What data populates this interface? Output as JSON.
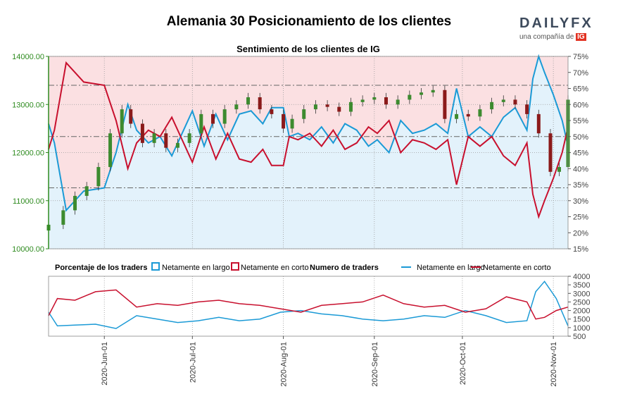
{
  "header": {
    "title": "Alemania 30 Posicionamiento de los clientes",
    "logo_brand": "DAILYFX",
    "logo_tagline": "una compañía de",
    "logo_ig": "IG"
  },
  "colors": {
    "long_line": "#1b9ad6",
    "short_line": "#c8102e",
    "long_fill": "#e3f2fb",
    "short_fill": "#fbe0e2",
    "candle_up": "#3d8b2f",
    "candle_down": "#8b1a1a",
    "axis_green": "#2e8b1f",
    "grid": "#9a9a9a"
  },
  "chart_data": [
    {
      "type": "candlestick+area",
      "title": "Sentimiento de los clientes de IG",
      "ylim": [
        10000,
        14000
      ],
      "yticks": [
        "10000.00",
        "11000.00",
        "12000.00",
        "13000.00",
        "14000.00"
      ],
      "y2lim": [
        15,
        75
      ],
      "y2ticks": [
        "15%",
        "20%",
        "25%",
        "30%",
        "35%",
        "40%",
        "45%",
        "50%",
        "55%",
        "60%",
        "65%",
        "70%",
        "75%"
      ],
      "reference_lines": [
        34,
        50,
        66
      ],
      "x_range": [
        "2020-05-13",
        "2020-11-06"
      ],
      "xticks": [
        "2020-Jun-01",
        "2020-Jul-01",
        "2020-Aug-01",
        "2020-Sep-01",
        "2020-Oct-01",
        "2020-Nov-01"
      ],
      "long_pct_series": {
        "name": "Netamente en largo",
        "x": [
          "2020-05-13",
          "2020-05-15",
          "2020-05-19",
          "2020-05-25",
          "2020-06-01",
          "2020-06-05",
          "2020-06-09",
          "2020-06-12",
          "2020-06-16",
          "2020-06-20",
          "2020-06-24",
          "2020-06-28",
          "2020-07-01",
          "2020-07-05",
          "2020-07-09",
          "2020-07-13",
          "2020-07-17",
          "2020-07-21",
          "2020-07-25",
          "2020-07-28",
          "2020-08-01",
          "2020-08-03",
          "2020-08-06",
          "2020-08-10",
          "2020-08-14",
          "2020-08-18",
          "2020-08-22",
          "2020-08-26",
          "2020-08-30",
          "2020-09-02",
          "2020-09-06",
          "2020-09-10",
          "2020-09-14",
          "2020-09-18",
          "2020-09-22",
          "2020-09-26",
          "2020-09-29",
          "2020-10-03",
          "2020-10-07",
          "2020-10-11",
          "2020-10-15",
          "2020-10-19",
          "2020-10-23",
          "2020-10-25",
          "2020-10-27",
          "2020-10-29",
          "2020-11-01",
          "2020-11-04",
          "2020-11-06"
        ],
        "values": [
          54,
          48,
          27,
          33,
          34,
          45,
          60,
          52,
          48,
          50,
          44,
          52,
          58,
          47,
          57,
          49,
          57,
          58,
          54,
          59,
          59,
          50,
          51,
          49,
          53,
          48,
          54,
          52,
          47,
          49,
          45,
          55,
          51,
          52,
          54,
          51,
          65,
          50,
          53,
          50,
          56,
          59,
          52,
          68,
          75,
          70,
          63,
          55,
          47
        ]
      },
      "short_pct_series": {
        "name": "Netamente en corto",
        "x": [
          "2020-05-13",
          "2020-05-15",
          "2020-05-19",
          "2020-05-25",
          "2020-06-01",
          "2020-06-05",
          "2020-06-09",
          "2020-06-12",
          "2020-06-16",
          "2020-06-20",
          "2020-06-24",
          "2020-06-28",
          "2020-07-01",
          "2020-07-05",
          "2020-07-09",
          "2020-07-13",
          "2020-07-17",
          "2020-07-21",
          "2020-07-25",
          "2020-07-28",
          "2020-08-01",
          "2020-08-03",
          "2020-08-06",
          "2020-08-10",
          "2020-08-14",
          "2020-08-18",
          "2020-08-22",
          "2020-08-26",
          "2020-08-30",
          "2020-09-02",
          "2020-09-06",
          "2020-09-10",
          "2020-09-14",
          "2020-09-18",
          "2020-09-22",
          "2020-09-26",
          "2020-09-29",
          "2020-10-03",
          "2020-10-07",
          "2020-10-11",
          "2020-10-15",
          "2020-10-19",
          "2020-10-23",
          "2020-10-25",
          "2020-10-27",
          "2020-10-29",
          "2020-11-01",
          "2020-11-04",
          "2020-11-06"
        ],
        "values": [
          46,
          52,
          73,
          67,
          66,
          55,
          40,
          48,
          52,
          50,
          56,
          48,
          42,
          53,
          43,
          51,
          43,
          42,
          46,
          41,
          41,
          50,
          49,
          51,
          47,
          52,
          46,
          48,
          53,
          51,
          55,
          45,
          49,
          48,
          46,
          49,
          35,
          50,
          47,
          50,
          44,
          41,
          48,
          32,
          25,
          30,
          37,
          45,
          53
        ]
      },
      "price_series": {
        "name": "Alemania 30",
        "x": [
          "2020-05-13",
          "2020-05-18",
          "2020-05-22",
          "2020-05-26",
          "2020-05-30",
          "2020-06-03",
          "2020-06-07",
          "2020-06-10",
          "2020-06-14",
          "2020-06-18",
          "2020-06-22",
          "2020-06-26",
          "2020-06-30",
          "2020-07-04",
          "2020-07-08",
          "2020-07-12",
          "2020-07-16",
          "2020-07-20",
          "2020-07-24",
          "2020-07-28",
          "2020-08-01",
          "2020-08-04",
          "2020-08-08",
          "2020-08-12",
          "2020-08-16",
          "2020-08-20",
          "2020-08-24",
          "2020-08-28",
          "2020-09-01",
          "2020-09-05",
          "2020-09-09",
          "2020-09-13",
          "2020-09-17",
          "2020-09-21",
          "2020-09-25",
          "2020-09-29",
          "2020-10-03",
          "2020-10-07",
          "2020-10-11",
          "2020-10-15",
          "2020-10-19",
          "2020-10-23",
          "2020-10-27",
          "2020-10-31",
          "2020-11-03",
          "2020-11-06"
        ],
        "values": [
          10500,
          10800,
          11100,
          11300,
          11700,
          12400,
          12900,
          12600,
          12200,
          12400,
          12100,
          12200,
          12400,
          12800,
          12600,
          12900,
          13000,
          13150,
          12900,
          12800,
          12500,
          12700,
          12900,
          13000,
          12950,
          12850,
          13050,
          13100,
          13150,
          13000,
          13100,
          13200,
          13250,
          13300,
          12700,
          12800,
          12750,
          12900,
          13050,
          13100,
          13000,
          12800,
          12400,
          11600,
          11700,
          13100
        ]
      }
    },
    {
      "type": "line",
      "title": "Numero de traders",
      "ylim": [
        500,
        4000
      ],
      "yticks": [
        "500",
        "1000",
        "1500",
        "2000",
        "2500",
        "3000",
        "3500",
        "4000"
      ],
      "series": [
        {
          "name": "Netamente en largo",
          "x": [
            "2020-05-13",
            "2020-05-16",
            "2020-05-22",
            "2020-05-29",
            "2020-06-05",
            "2020-06-12",
            "2020-06-19",
            "2020-06-26",
            "2020-07-03",
            "2020-07-10",
            "2020-07-17",
            "2020-07-24",
            "2020-07-31",
            "2020-08-07",
            "2020-08-14",
            "2020-08-21",
            "2020-08-28",
            "2020-09-04",
            "2020-09-11",
            "2020-09-18",
            "2020-09-25",
            "2020-10-02",
            "2020-10-09",
            "2020-10-16",
            "2020-10-23",
            "2020-10-26",
            "2020-10-29",
            "2020-11-02",
            "2020-11-06"
          ],
          "values": [
            1900,
            1100,
            1150,
            1200,
            950,
            1700,
            1500,
            1300,
            1400,
            1600,
            1400,
            1500,
            1900,
            2000,
            1800,
            1700,
            1500,
            1400,
            1500,
            1700,
            1600,
            2000,
            1700,
            1300,
            1400,
            3100,
            3700,
            2700,
            1100
          ]
        },
        {
          "name": "Netamente en corto",
          "x": [
            "2020-05-13",
            "2020-05-16",
            "2020-05-22",
            "2020-05-29",
            "2020-06-05",
            "2020-06-12",
            "2020-06-19",
            "2020-06-26",
            "2020-07-03",
            "2020-07-10",
            "2020-07-17",
            "2020-07-24",
            "2020-07-31",
            "2020-08-07",
            "2020-08-14",
            "2020-08-21",
            "2020-08-28",
            "2020-09-04",
            "2020-09-11",
            "2020-09-18",
            "2020-09-25",
            "2020-10-02",
            "2020-10-09",
            "2020-10-16",
            "2020-10-23",
            "2020-10-26",
            "2020-10-29",
            "2020-11-02",
            "2020-11-06"
          ],
          "values": [
            1700,
            2700,
            2600,
            3100,
            3200,
            2200,
            2400,
            2300,
            2500,
            2600,
            2400,
            2300,
            2100,
            1900,
            2300,
            2400,
            2500,
            2900,
            2400,
            2200,
            2300,
            1900,
            2100,
            2800,
            2500,
            1500,
            1600,
            2000,
            2200
          ]
        }
      ]
    }
  ],
  "legend": {
    "pct_title": "Porcentaje de los traders",
    "pct_long": "Netamente en largo",
    "pct_short": "Netamente en corto",
    "count_title": "Numero de traders",
    "count_long": "Netamente en largo",
    "count_short": "Netamente en corto"
  }
}
